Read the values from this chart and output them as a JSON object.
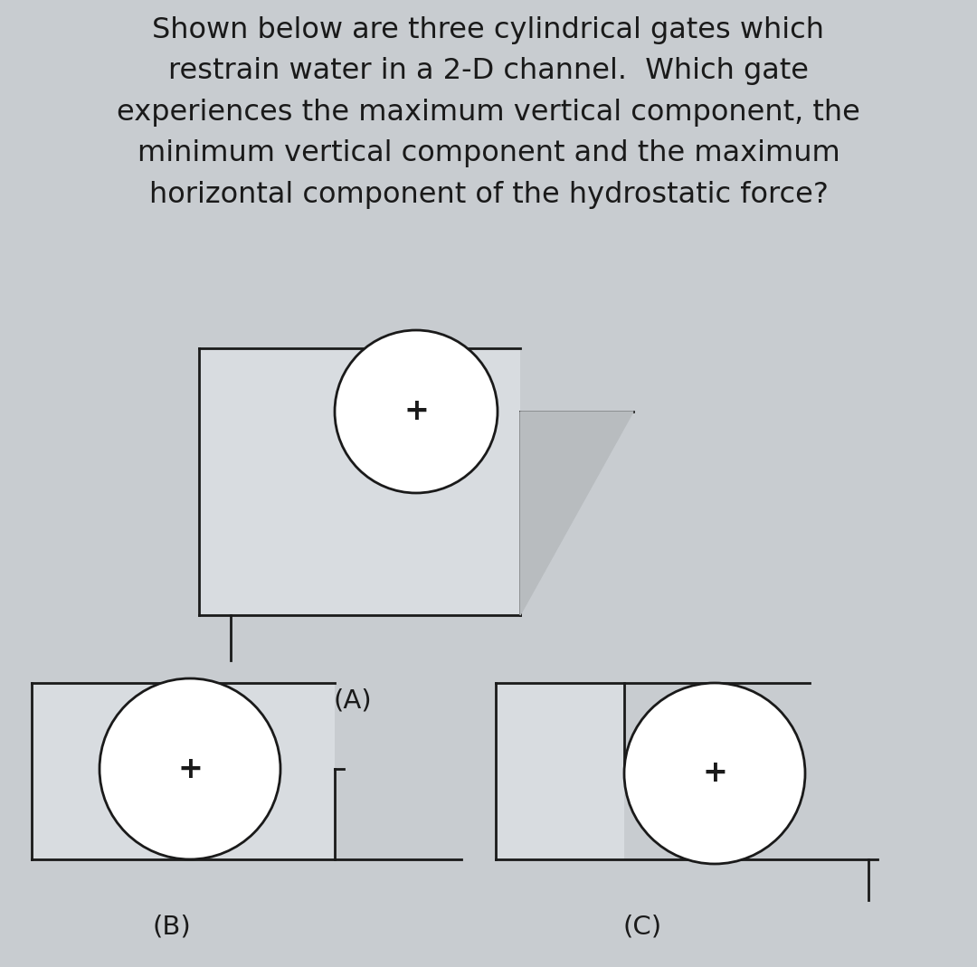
{
  "background_color": "#c8ccd0",
  "box_fill": "#d8dce0",
  "shadow_fill": "#b8bcbf",
  "text_color": "#1a1a1a",
  "title_lines": [
    "Shown below are three cylindrical gates which",
    "restrain water in a 2-D channel.  Which gate",
    "experiences the maximum vertical component, the",
    "minimum vertical component and the maximum",
    "horizontal component of the hydrostatic force?"
  ],
  "title_fontsize": 23,
  "label_fontsize": 21,
  "plus_fontsize": 24,
  "line_color": "#1a1a1a",
  "line_width": 2.0
}
